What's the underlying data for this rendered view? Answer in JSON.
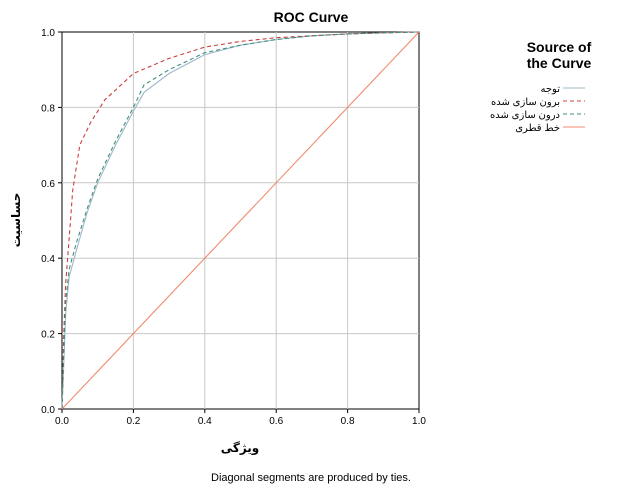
{
  "chart_data": {
    "type": "line",
    "title": "ROC Curve",
    "xlabel": "ویژگی",
    "ylabel": "حساسیت",
    "footnote": "Diagonal segments are produced by ties.",
    "xlim": [
      0,
      1
    ],
    "ylim": [
      0,
      1
    ],
    "xticks": [
      "0.0",
      "0.2",
      "0.4",
      "0.6",
      "0.8",
      "1.0"
    ],
    "yticks": [
      "0.0",
      "0.2",
      "0.4",
      "0.6",
      "0.8",
      "1.0"
    ],
    "grid": true,
    "legend": {
      "title_line1": "Source of",
      "title_line2": "the Curve",
      "placement": "right"
    },
    "series": [
      {
        "name": "توجه",
        "color": "#9fb8c8",
        "dash": "solid",
        "points": [
          [
            0,
            0
          ],
          [
            0.005,
            0.12
          ],
          [
            0.01,
            0.25
          ],
          [
            0.02,
            0.35
          ],
          [
            0.04,
            0.42
          ],
          [
            0.07,
            0.52
          ],
          [
            0.1,
            0.6
          ],
          [
            0.15,
            0.7
          ],
          [
            0.2,
            0.79
          ],
          [
            0.23,
            0.84
          ],
          [
            0.3,
            0.89
          ],
          [
            0.4,
            0.94
          ],
          [
            0.5,
            0.965
          ],
          [
            0.6,
            0.98
          ],
          [
            0.7,
            0.99
          ],
          [
            0.8,
            0.995
          ],
          [
            0.9,
            0.998
          ],
          [
            1,
            1
          ]
        ]
      },
      {
        "name": "برون سازی شده",
        "color": "#cc3f3f",
        "dash": "dashed",
        "points": [
          [
            0,
            0
          ],
          [
            0.005,
            0.2
          ],
          [
            0.01,
            0.33
          ],
          [
            0.02,
            0.45
          ],
          [
            0.03,
            0.58
          ],
          [
            0.05,
            0.7
          ],
          [
            0.08,
            0.76
          ],
          [
            0.12,
            0.82
          ],
          [
            0.2,
            0.89
          ],
          [
            0.3,
            0.93
          ],
          [
            0.4,
            0.96
          ],
          [
            0.5,
            0.975
          ],
          [
            0.6,
            0.985
          ],
          [
            0.7,
            0.99
          ],
          [
            0.8,
            0.995
          ],
          [
            0.9,
            0.998
          ],
          [
            1,
            1
          ]
        ]
      },
      {
        "name": "درون سازی شده",
        "color": "#3f8f7a",
        "dash": "dashed",
        "points": [
          [
            0,
            0
          ],
          [
            0.005,
            0.15
          ],
          [
            0.01,
            0.28
          ],
          [
            0.02,
            0.37
          ],
          [
            0.04,
            0.44
          ],
          [
            0.07,
            0.53
          ],
          [
            0.1,
            0.61
          ],
          [
            0.15,
            0.71
          ],
          [
            0.2,
            0.8
          ],
          [
            0.23,
            0.86
          ],
          [
            0.3,
            0.9
          ],
          [
            0.4,
            0.945
          ],
          [
            0.5,
            0.965
          ],
          [
            0.6,
            0.98
          ],
          [
            0.7,
            0.99
          ],
          [
            0.8,
            0.995
          ],
          [
            0.9,
            0.998
          ],
          [
            1,
            1
          ]
        ]
      },
      {
        "name": "خط قطری",
        "color": "#f08a6e",
        "dash": "solid",
        "points": [
          [
            0,
            0
          ],
          [
            1,
            1
          ]
        ]
      }
    ]
  }
}
